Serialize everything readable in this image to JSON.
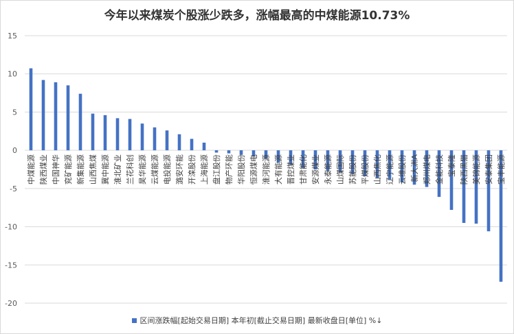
{
  "chart_data": {
    "type": "bar",
    "title": "今年以来煤炭个股涨少跌多，涨幅最高的中煤能源10.73%",
    "xlabel": "",
    "ylabel": "",
    "ylim": [
      -20,
      15
    ],
    "yticks": [
      15,
      10,
      5,
      0,
      -5,
      -10,
      -15,
      -20
    ],
    "grid": "horizontal",
    "legend_position": "bottom",
    "bar_color": "#4472c4",
    "series": [
      {
        "name": "区间涨跌幅[起始交易日期] 本年初[截止交易日期] 最新收盘日[单位] %↓",
        "values": [
          10.73,
          9.2,
          8.9,
          8.5,
          7.4,
          4.8,
          4.6,
          4.2,
          4.1,
          3.5,
          3.0,
          2.6,
          2.1,
          1.5,
          1.0,
          -0.3,
          -0.4,
          -0.6,
          -0.8,
          -1.1,
          -1.6,
          -1.9,
          -2.3,
          -2.5,
          -2.7,
          -2.9,
          -3.1,
          -3.4,
          -3.6,
          -3.8,
          -4.2,
          -4.5,
          -4.8,
          -6.1,
          -7.8,
          -9.5,
          -9.6,
          -10.6,
          -17.2
        ]
      }
    ],
    "categories": [
      "中煤能源",
      "陕西煤业",
      "中国神华",
      "兖矿能源",
      "新集能源",
      "山西焦煤",
      "冀中能源",
      "淮北矿业",
      "兰花科创",
      "昊华能源",
      "云煤能源",
      "电投能源",
      "潞安环能",
      "开滦股份",
      "上海能源",
      "盘江股份",
      "物产环能",
      "华阳股份",
      "恒源煤电",
      "淮河能源",
      "大有能源",
      "晋控煤业",
      "甘肃能化",
      "安源煤业",
      "永泰能源",
      "山煤国际",
      "苏能股份",
      "平煤股份",
      "山西焦化",
      "辽宁能源",
      "云维股份",
      "新大洲A",
      "郑州煤电",
      "金能科技",
      "宝泰隆",
      "陕西黑猫",
      "美锦能源",
      "安泰集团",
      "宝丰能源"
    ]
  }
}
